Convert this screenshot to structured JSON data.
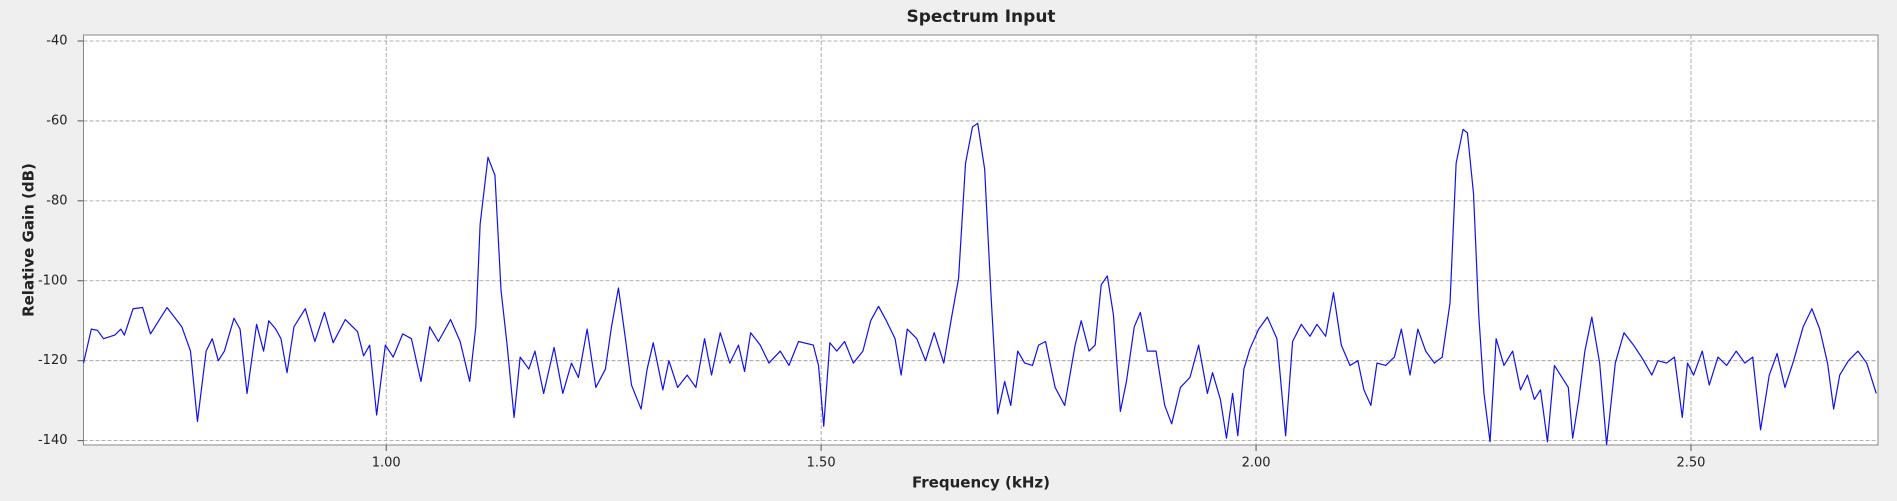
{
  "chart_data": {
    "type": "line",
    "title": "Spectrum Input",
    "xlabel": "Frequency (kHz)",
    "ylabel": "Relative Gain (dB)",
    "xlim": [
      0.652,
      2.715
    ],
    "ylim": [
      -141.1,
      -38.5
    ],
    "xticks": [
      {
        "value": 1,
        "label": "1.00"
      },
      {
        "value": 1.5,
        "label": "1.50"
      },
      {
        "value": 2,
        "label": "2.00"
      },
      {
        "value": 2.5,
        "label": "2.50"
      }
    ],
    "yticks": [
      -40,
      -60,
      -80,
      -100,
      -120,
      -140
    ],
    "grid": true,
    "x": [
      0.652,
      0.661,
      0.668,
      0.675,
      0.688,
      0.695,
      0.699,
      0.709,
      0.72,
      0.729,
      0.748,
      0.765,
      0.775,
      0.783,
      0.793,
      0.8,
      0.807,
      0.814,
      0.825,
      0.832,
      0.84,
      0.851,
      0.859,
      0.865,
      0.873,
      0.879,
      0.886,
      0.894,
      0.907,
      0.918,
      0.929,
      0.939,
      0.953,
      0.967,
      0.974,
      0.981,
      0.989,
      0.999,
      1.008,
      1.019,
      1.029,
      1.04,
      1.05,
      1.06,
      1.074,
      1.085,
      1.096,
      1.103,
      1.108,
      1.117,
      1.125,
      1.132,
      1.139,
      1.147,
      1.154,
      1.164,
      1.171,
      1.181,
      1.193,
      1.203,
      1.213,
      1.221,
      1.231,
      1.241,
      1.252,
      1.259,
      1.267,
      1.275,
      1.282,
      1.293,
      1.3,
      1.307,
      1.318,
      1.325,
      1.335,
      1.346,
      1.356,
      1.366,
      1.374,
      1.384,
      1.395,
      1.405,
      1.412,
      1.419,
      1.43,
      1.44,
      1.453,
      1.463,
      1.474,
      1.491,
      1.497,
      1.503,
      1.51,
      1.518,
      1.527,
      1.537,
      1.548,
      1.557,
      1.566,
      1.575,
      1.585,
      1.592,
      1.599,
      1.61,
      1.62,
      1.63,
      1.641,
      1.65,
      1.658,
      1.666,
      1.674,
      1.68,
      1.688,
      1.695,
      1.703,
      1.711,
      1.718,
      1.726,
      1.734,
      1.743,
      1.75,
      1.758,
      1.769,
      1.78,
      1.792,
      1.799,
      1.808,
      1.815,
      1.822,
      1.829,
      1.836,
      1.844,
      1.851,
      1.86,
      1.867,
      1.875,
      1.885,
      1.895,
      1.903,
      1.913,
      1.924,
      1.934,
      1.944,
      1.95,
      1.959,
      1.966,
      1.973,
      1.979,
      1.986,
      1.993,
      2.003,
      2.013,
      2.024,
      2.034,
      2.042,
      2.052,
      2.062,
      2.07,
      2.08,
      2.089,
      2.098,
      2.108,
      2.117,
      2.124,
      2.132,
      2.139,
      2.149,
      2.159,
      2.167,
      2.177,
      2.186,
      2.195,
      2.205,
      2.214,
      2.223,
      2.23,
      2.238,
      2.243,
      2.25,
      2.256,
      2.262,
      2.269,
      2.276,
      2.285,
      2.295,
      2.304,
      2.312,
      2.32,
      2.327,
      2.335,
      2.343,
      2.35,
      2.359,
      2.364,
      2.371,
      2.378,
      2.386,
      2.395,
      2.403,
      2.413,
      2.423,
      2.434,
      2.444,
      2.455,
      2.462,
      2.472,
      2.481,
      2.49,
      2.496,
      2.503,
      2.513,
      2.521,
      2.531,
      2.541,
      2.552,
      2.562,
      2.571,
      2.58,
      2.59,
      2.599,
      2.608,
      2.618,
      2.629,
      2.639,
      2.648,
      2.657,
      2.664,
      2.671,
      2.681,
      2.692,
      2.702,
      2.713
    ],
    "series": [
      {
        "name": "Spectrum",
        "color": "#1010ee",
        "values": [
          -120.6,
          -112.1,
          -112.4,
          -114.5,
          -113.6,
          -112.1,
          -113.6,
          -107,
          -106.7,
          -113.3,
          -106.7,
          -111.5,
          -117.6,
          -135.2,
          -117.6,
          -114.5,
          -120,
          -117.6,
          -109.4,
          -112.1,
          -128.2,
          -110.9,
          -117.6,
          -110,
          -112.1,
          -114.5,
          -123,
          -111.5,
          -107,
          -115.2,
          -107.9,
          -115.5,
          -109.7,
          -112.7,
          -118.8,
          -116.1,
          -133.6,
          -116.1,
          -119.1,
          -113.3,
          -114.5,
          -125.2,
          -111.5,
          -115.2,
          -109.7,
          -115.2,
          -125.2,
          -111.5,
          -85.8,
          -69.1,
          -73.6,
          -102.4,
          -116.1,
          -134.2,
          -119.1,
          -122.1,
          -117.6,
          -128.2,
          -116.7,
          -128.2,
          -120.6,
          -124.2,
          -112.1,
          -126.7,
          -122.1,
          -111.5,
          -101.8,
          -114.5,
          -126.1,
          -132.1,
          -122.1,
          -115.5,
          -127.3,
          -120,
          -126.7,
          -123.6,
          -126.7,
          -114.5,
          -123.6,
          -113,
          -120.6,
          -116.1,
          -122.7,
          -113,
          -116.1,
          -120.6,
          -117.6,
          -121.2,
          -115.2,
          -116.1,
          -121.2,
          -136.4,
          -115.5,
          -117.6,
          -115.2,
          -120.6,
          -117.6,
          -110,
          -106.4,
          -110,
          -114.5,
          -123.6,
          -112.1,
          -114.5,
          -120,
          -113,
          -120.6,
          -109.1,
          -99.4,
          -70.6,
          -61.5,
          -60.6,
          -72.1,
          -102.4,
          -133.3,
          -125.2,
          -131.2,
          -117.6,
          -120.6,
          -121.2,
          -116.1,
          -115.2,
          -126.7,
          -131.2,
          -116.1,
          -110,
          -117.6,
          -116.1,
          -101,
          -98.8,
          -108.5,
          -132.7,
          -125.2,
          -111.5,
          -107.9,
          -117.6,
          -117.6,
          -131.2,
          -135.8,
          -126.7,
          -124.2,
          -116.1,
          -128.2,
          -123,
          -129.7,
          -139.4,
          -128.2,
          -138.8,
          -122.1,
          -117,
          -112.1,
          -109.1,
          -114.5,
          -138.8,
          -115.2,
          -110.9,
          -113.9,
          -110.9,
          -113.9,
          -103,
          -116.1,
          -121.2,
          -120,
          -127.3,
          -131.2,
          -120.6,
          -121.2,
          -119.1,
          -112.1,
          -123.6,
          -112.1,
          -117.6,
          -120.6,
          -119.1,
          -105.5,
          -70.6,
          -62.1,
          -63,
          -78.2,
          -108.5,
          -128.2,
          -140.3,
          -114.5,
          -121.2,
          -117.6,
          -127.3,
          -123.6,
          -129.7,
          -127.3,
          -140.3,
          -121.2,
          -123.6,
          -126.7,
          -139.4,
          -129.7,
          -117.6,
          -109.1,
          -120.6,
          -141,
          -120.6,
          -113,
          -116.1,
          -119.4,
          -123.6,
          -120,
          -120.6,
          -119.1,
          -134.2,
          -120.6,
          -123.6,
          -117.6,
          -126.1,
          -119.1,
          -121.2,
          -117.6,
          -120.6,
          -119.1,
          -137.3,
          -123.6,
          -118.2,
          -126.7,
          -120,
          -111.5,
          -107,
          -112.1,
          -120.6,
          -132.1,
          -123.6,
          -120,
          -117.6,
          -120.6,
          -128.2
        ]
      }
    ]
  }
}
